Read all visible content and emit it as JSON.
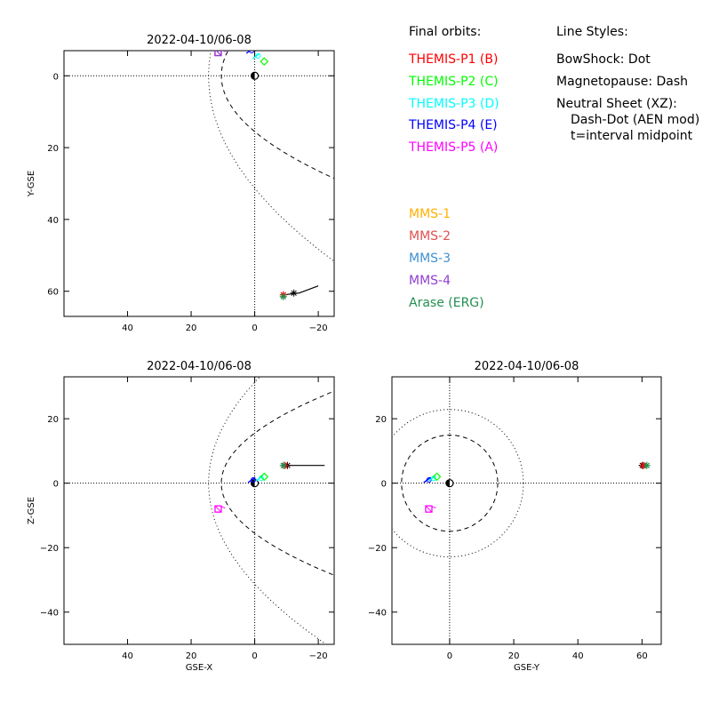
{
  "legend": {
    "orbits_title": "Final orbits:",
    "styles_title": "Line Styles:",
    "styles": [
      "BowShock: Dot",
      "Magnetopause: Dash",
      "Neutral Sheet (XZ):",
      "Dash-Dot (AEN mod)",
      "t=interval midpoint"
    ],
    "spacecraft": [
      {
        "label": "THEMIS-P1 (B)",
        "color": "#ff0000"
      },
      {
        "label": "THEMIS-P2 (C)",
        "color": "#00ff00"
      },
      {
        "label": "THEMIS-P3 (D)",
        "color": "#00ffff"
      },
      {
        "label": "THEMIS-P4 (E)",
        "color": "#0000ff"
      },
      {
        "label": "THEMIS-P5 (A)",
        "color": "#ff00ff"
      },
      {
        "label": "MMS-1",
        "color": "#ffb000"
      },
      {
        "label": "MMS-2",
        "color": "#e05050"
      },
      {
        "label": "MMS-3",
        "color": "#4090d0"
      },
      {
        "label": "MMS-4",
        "color": "#9040d0"
      },
      {
        "label": "Arase (ERG)",
        "color": "#209050"
      }
    ]
  },
  "chart_data": [
    {
      "type": "scatter",
      "title": "2022-04-10/06-08",
      "xlabel": "",
      "ylabel": "Y-GSE",
      "xlim": [
        60,
        -25
      ],
      "ylim": [
        -7,
        67
      ],
      "x_ticks": [
        40,
        20,
        0,
        -20
      ],
      "y_ticks": [
        0,
        20,
        40,
        60
      ],
      "points": [
        {
          "sc": "THEMIS-P5 (A)",
          "x": 11.5,
          "y": -6.5,
          "color": "#ff00ff"
        },
        {
          "sc": "MMS-4",
          "x": 11.5,
          "y": -6.5,
          "color": "#9040d0"
        },
        {
          "sc": "THEMIS-P4 (E)",
          "x": 1.5,
          "y": -7.0,
          "color": "#0000ff"
        },
        {
          "sc": "THEMIS-P3 (D)",
          "x": -0.5,
          "y": -5.5,
          "color": "#00ffff"
        },
        {
          "sc": "THEMIS-P2 (C)",
          "x": -3.0,
          "y": -4.0,
          "color": "#00ff00"
        },
        {
          "sc": "THEMIS-P1 (B)",
          "x": -9.0,
          "y": 61.0,
          "color": "#ff0000"
        },
        {
          "sc": "Arase (ERG)",
          "x": -9.0,
          "y": 61.5,
          "color": "#209050"
        }
      ]
    },
    {
      "type": "scatter",
      "title": "2022-04-10/06-08",
      "xlabel": "GSE-X",
      "ylabel": "Z-GSE",
      "xlim": [
        60,
        -25
      ],
      "ylim": [
        -50,
        33
      ],
      "x_ticks": [
        40,
        20,
        0,
        -20
      ],
      "y_ticks": [
        20,
        0,
        -20,
        -40
      ],
      "points": [
        {
          "sc": "THEMIS-P5 (A)",
          "x": 11.5,
          "y": -8.0,
          "color": "#ff00ff"
        },
        {
          "sc": "THEMIS-P4 (E)",
          "x": 1.0,
          "y": 1.0,
          "color": "#0000ff"
        },
        {
          "sc": "THEMIS-P3 (D)",
          "x": -1.5,
          "y": 1.5,
          "color": "#00ffff"
        },
        {
          "sc": "THEMIS-P2 (C)",
          "x": -3.0,
          "y": 2.0,
          "color": "#00ff00"
        },
        {
          "sc": "THEMIS-P1 (B)",
          "x": -9.5,
          "y": 5.5,
          "color": "#ff0000"
        },
        {
          "sc": "Arase (ERG)",
          "x": -9.0,
          "y": 5.5,
          "color": "#209050"
        }
      ]
    },
    {
      "type": "scatter",
      "title": "2022-04-10/06-08",
      "xlabel": "GSE-Y",
      "ylabel": "",
      "xlim": [
        -18,
        66
      ],
      "ylim": [
        -50,
        33
      ],
      "x_ticks": [
        0,
        20,
        40,
        60
      ],
      "y_ticks": [
        20,
        0,
        -20,
        -40
      ],
      "points": [
        {
          "sc": "THEMIS-P5 (A)",
          "x": -6.5,
          "y": -8.0,
          "color": "#ff00ff"
        },
        {
          "sc": "THEMIS-P4 (E)",
          "x": -7.0,
          "y": 1.0,
          "color": "#0000ff"
        },
        {
          "sc": "THEMIS-P3 (D)",
          "x": -5.5,
          "y": 1.5,
          "color": "#00ffff"
        },
        {
          "sc": "THEMIS-P2 (C)",
          "x": -4.0,
          "y": 2.0,
          "color": "#00ff00"
        },
        {
          "sc": "THEMIS-P1 (B)",
          "x": 60.5,
          "y": 5.5,
          "color": "#ff0000"
        },
        {
          "sc": "Arase (ERG)",
          "x": 61.5,
          "y": 5.5,
          "color": "#209050"
        }
      ]
    }
  ]
}
